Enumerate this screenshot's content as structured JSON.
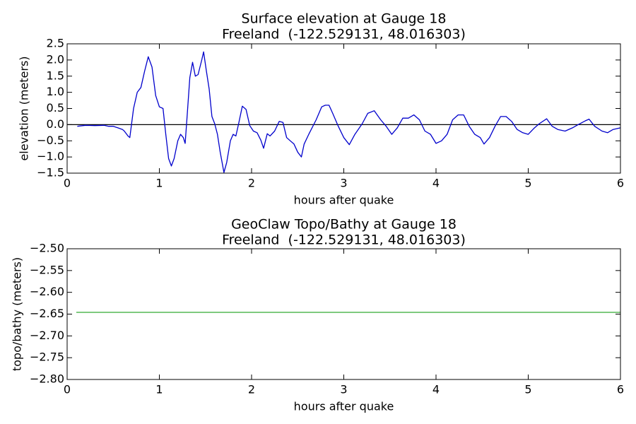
{
  "chart_data": [
    {
      "type": "line",
      "title": "Surface elevation at Gauge 18",
      "subtitle": "Freeland  (-122.529131, 48.016303)",
      "x_label": "hours after quake",
      "y_label": "elevation (meters)",
      "x": [
        0.11,
        0.2,
        0.3,
        0.4,
        0.45,
        0.5,
        0.55,
        0.6,
        0.62,
        0.66,
        0.68,
        0.72,
        0.76,
        0.8,
        0.84,
        0.88,
        0.92,
        0.96,
        1.0,
        1.04,
        1.07,
        1.1,
        1.13,
        1.16,
        1.2,
        1.23,
        1.26,
        1.28,
        1.3,
        1.33,
        1.36,
        1.39,
        1.42,
        1.46,
        1.48,
        1.51,
        1.54,
        1.57,
        1.6,
        1.63,
        1.66,
        1.7,
        1.73,
        1.77,
        1.8,
        1.83,
        1.86,
        1.9,
        1.94,
        1.98,
        2.02,
        2.06,
        2.1,
        2.13,
        2.17,
        2.2,
        2.25,
        2.3,
        2.34,
        2.38,
        2.42,
        2.46,
        2.5,
        2.54,
        2.57,
        2.62,
        2.7,
        2.76,
        2.8,
        2.84,
        2.88,
        2.94,
        3.0,
        3.06,
        3.12,
        3.2,
        3.26,
        3.33,
        3.4,
        3.46,
        3.52,
        3.58,
        3.64,
        3.7,
        3.76,
        3.82,
        3.88,
        3.94,
        4.0,
        4.06,
        4.12,
        4.18,
        4.24,
        4.3,
        4.36,
        4.42,
        4.48,
        4.52,
        4.58,
        4.64,
        4.7,
        4.76,
        4.82,
        4.88,
        4.94,
        5.0,
        5.06,
        5.12,
        5.2,
        5.26,
        5.32,
        5.4,
        5.48,
        5.54,
        5.62,
        5.66,
        5.72,
        5.8,
        5.86,
        5.92,
        6.0
      ],
      "values": [
        -0.05,
        -0.02,
        -0.03,
        -0.02,
        -0.05,
        -0.05,
        -0.1,
        -0.15,
        -0.2,
        -0.35,
        -0.4,
        0.5,
        1.0,
        1.15,
        1.65,
        2.1,
        1.78,
        0.9,
        0.55,
        0.5,
        -0.3,
        -1.05,
        -1.28,
        -1.05,
        -0.5,
        -0.3,
        -0.4,
        -0.58,
        0.2,
        1.45,
        1.93,
        1.5,
        1.55,
        2.0,
        2.25,
        1.65,
        1.1,
        0.25,
        0.03,
        -0.3,
        -0.85,
        -1.48,
        -1.17,
        -0.5,
        -0.3,
        -0.35,
        0.03,
        0.57,
        0.47,
        -0.03,
        -0.2,
        -0.25,
        -0.48,
        -0.73,
        -0.28,
        -0.35,
        -0.2,
        0.1,
        0.07,
        -0.4,
        -0.5,
        -0.6,
        -0.85,
        -1.0,
        -0.6,
        -0.3,
        0.15,
        0.55,
        0.6,
        0.6,
        0.35,
        -0.05,
        -0.4,
        -0.62,
        -0.3,
        0.03,
        0.35,
        0.43,
        0.15,
        -0.05,
        -0.3,
        -0.1,
        0.2,
        0.2,
        0.3,
        0.15,
        -0.2,
        -0.3,
        -0.58,
        -0.5,
        -0.3,
        0.15,
        0.3,
        0.3,
        -0.05,
        -0.3,
        -0.4,
        -0.6,
        -0.4,
        -0.05,
        0.25,
        0.25,
        0.1,
        -0.15,
        -0.25,
        -0.3,
        -0.12,
        0.03,
        0.18,
        -0.05,
        -0.15,
        -0.2,
        -0.1,
        0.0,
        0.12,
        0.17,
        -0.05,
        -0.2,
        -0.25,
        -0.15,
        -0.1
      ],
      "color": "#0000cc",
      "hline": 0,
      "xlim": [
        0,
        6
      ],
      "xticks": [
        0,
        1,
        2,
        3,
        4,
        5,
        6
      ],
      "ylim": [
        -1.5,
        2.5
      ],
      "yticks": [
        {
          "value": -1.5,
          "label": "−1.5"
        },
        {
          "value": -1,
          "label": "−1.0"
        },
        {
          "value": -0.5,
          "label": "−0.5"
        },
        {
          "value": 0,
          "label": "0.0"
        },
        0.5,
        {
          "value": 1,
          "label": "1.0"
        },
        1.5,
        {
          "value": 2,
          "label": "2.0"
        },
        2.5
      ]
    },
    {
      "type": "line",
      "title": "GeoClaw Topo/Bathy at Gauge 18",
      "subtitle": "Freeland  (-122.529131, 48.016303)",
      "x_label": "hours after quake",
      "y_label": "topo/bathy (meters)",
      "x": [
        0.1,
        6
      ],
      "values": [
        -2.646,
        -2.646
      ],
      "color": "#33aa33",
      "xlim": [
        0,
        6
      ],
      "xticks": [
        0,
        1,
        2,
        3,
        4,
        5,
        6
      ],
      "ylim": [
        -2.8,
        -2.5
      ],
      "yticks": [
        {
          "value": -2.8,
          "label": "−2.80"
        },
        {
          "value": -2.75,
          "label": "−2.75"
        },
        {
          "value": -2.7,
          "label": "−2.70"
        },
        {
          "value": -2.65,
          "label": "−2.65"
        },
        {
          "value": -2.6,
          "label": "−2.60"
        },
        {
          "value": -2.55,
          "label": "−2.55"
        },
        {
          "value": -2.5,
          "label": "−2.50"
        }
      ]
    }
  ]
}
